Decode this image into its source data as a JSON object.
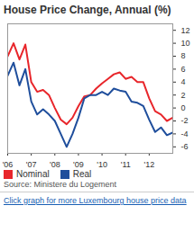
{
  "chart_data": {
    "type": "line",
    "title": "House Price Change, Annual (%)",
    "source": "Source: Ministere du Logement",
    "caption": "Click graph for more Luxembourg house price data",
    "x": [
      2006,
      2006.25,
      2006.5,
      2006.75,
      2007,
      2007.25,
      2007.5,
      2007.75,
      2008,
      2008.25,
      2008.5,
      2008.75,
      2009,
      2009.25,
      2009.5,
      2009.75,
      2010,
      2010.25,
      2010.5,
      2010.75,
      2011,
      2011.25,
      2011.5,
      2011.75,
      2012,
      2012.25,
      2012.5,
      2012.75,
      2013
    ],
    "series": [
      {
        "name": "Nominal",
        "color": "#e8262b",
        "values": [
          8,
          10,
          7.5,
          9.8,
          4,
          2.5,
          2.8,
          2,
          0,
          -1.8,
          -2.5,
          -1.5,
          0.3,
          1.8,
          2,
          3,
          3.8,
          4.5,
          5.2,
          5.5,
          4.5,
          4.8,
          4,
          4,
          1.5,
          -0.5,
          -1,
          -2,
          -1.5
        ]
      },
      {
        "name": "Real",
        "color": "#1f4e9c",
        "values": [
          5,
          7,
          3.5,
          6,
          1,
          -1,
          -0.2,
          -1,
          -2,
          -4,
          -6,
          -4,
          -1.5,
          1.5,
          2,
          2,
          2.5,
          2,
          3,
          2.7,
          2.5,
          1,
          0.8,
          0.3,
          -1.8,
          -3.7,
          -3,
          -4.2,
          -3.8
        ]
      }
    ],
    "xlim": [
      2006,
      2013
    ],
    "xticks": [
      {
        "value": 2006,
        "label": "'06"
      },
      {
        "value": 2007,
        "label": "'07"
      },
      {
        "value": 2008,
        "label": "'08"
      },
      {
        "value": 2009,
        "label": "'09"
      },
      {
        "value": 2010,
        "label": "'10"
      },
      {
        "value": 2011,
        "label": "'11"
      },
      {
        "value": 2012,
        "label": "'12"
      }
    ],
    "ylim": [
      -7,
      13
    ],
    "yticks": [
      12,
      10,
      8,
      6,
      4,
      2,
      0,
      -2,
      -4,
      -6
    ],
    "grid": false,
    "legend": "bottom"
  }
}
